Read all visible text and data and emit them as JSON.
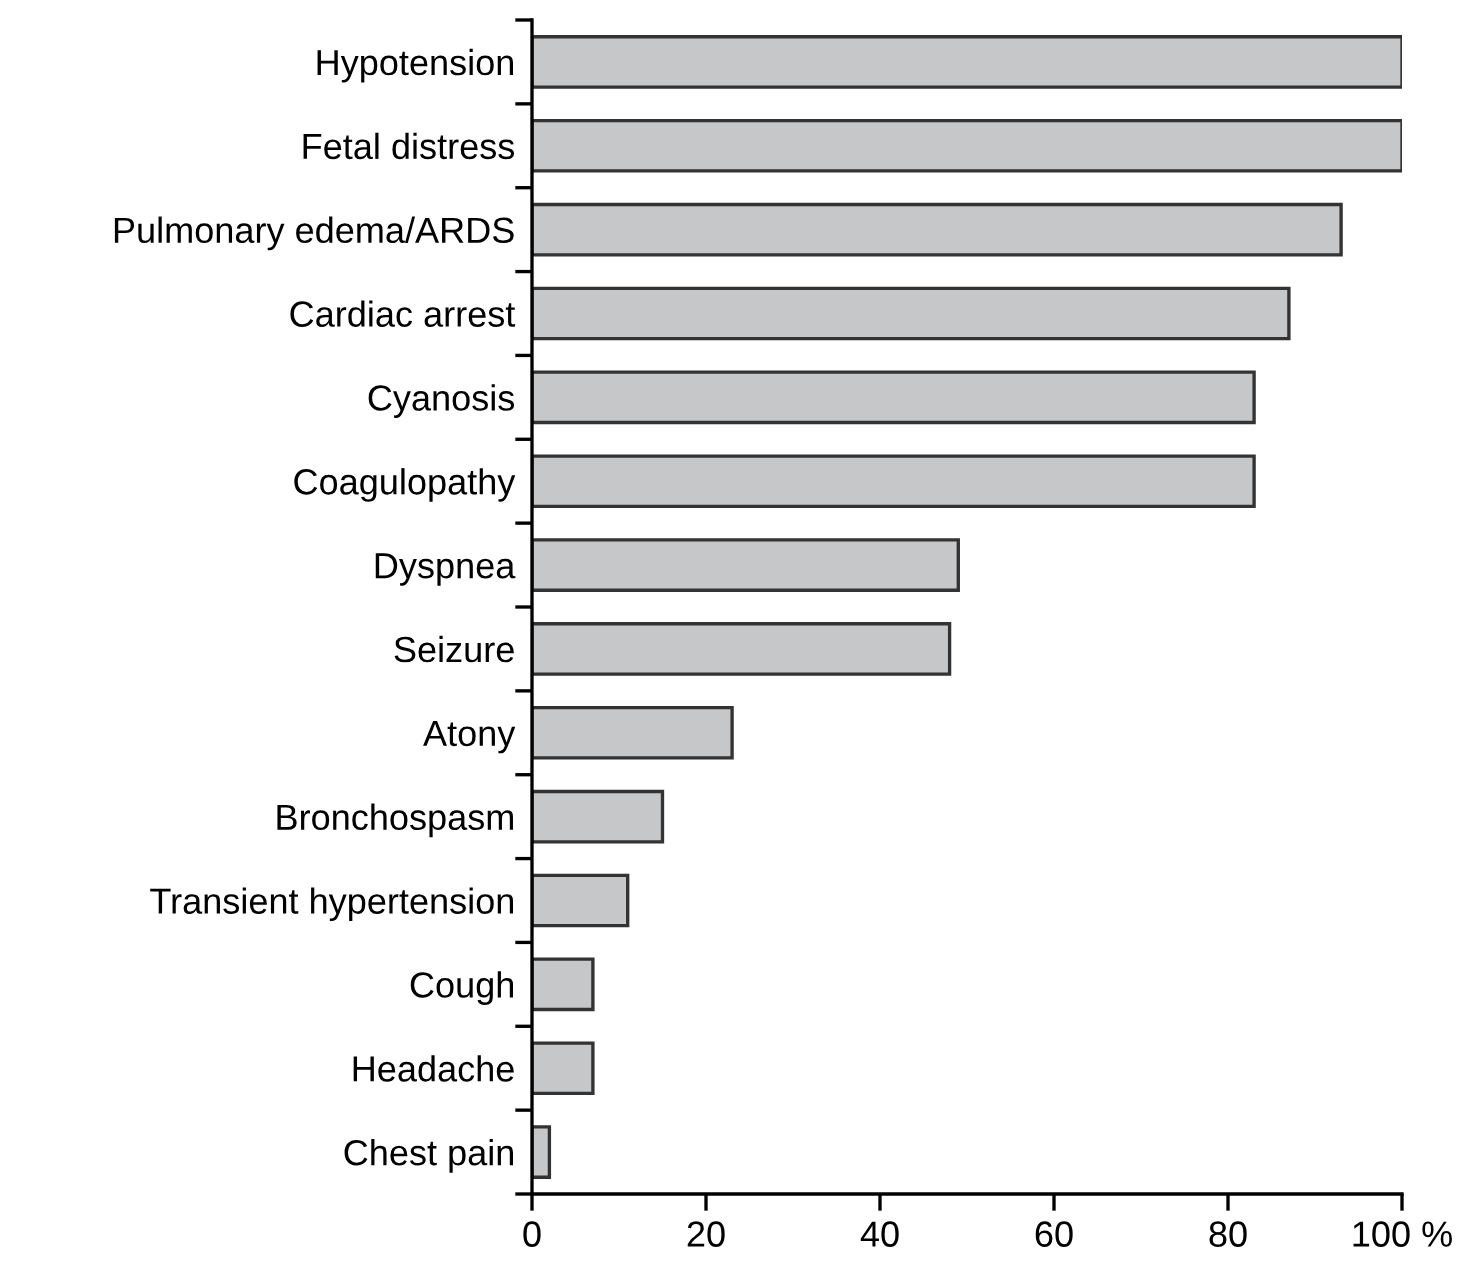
{
  "chart_data": {
    "type": "bar",
    "orientation": "horizontal",
    "categories": [
      "Hypotension",
      "Fetal distress",
      "Pulmonary edema/ARDS",
      "Cardiac arrest",
      "Cyanosis",
      "Coagulopathy",
      "Dyspnea",
      "Seizure",
      "Atony",
      "Bronchospasm",
      "Transient hypertension",
      "Cough",
      "Headache",
      "Chest pain"
    ],
    "values": [
      100,
      100,
      93,
      87,
      83,
      83,
      49,
      48,
      23,
      15,
      11,
      7,
      7,
      2
    ],
    "color": "#c6c7c9",
    "xlim": [
      0,
      100
    ],
    "xticks": [
      0,
      20,
      40,
      60,
      80,
      {
        "value": 100,
        "label": "100 %"
      }
    ],
    "grid": false
  }
}
